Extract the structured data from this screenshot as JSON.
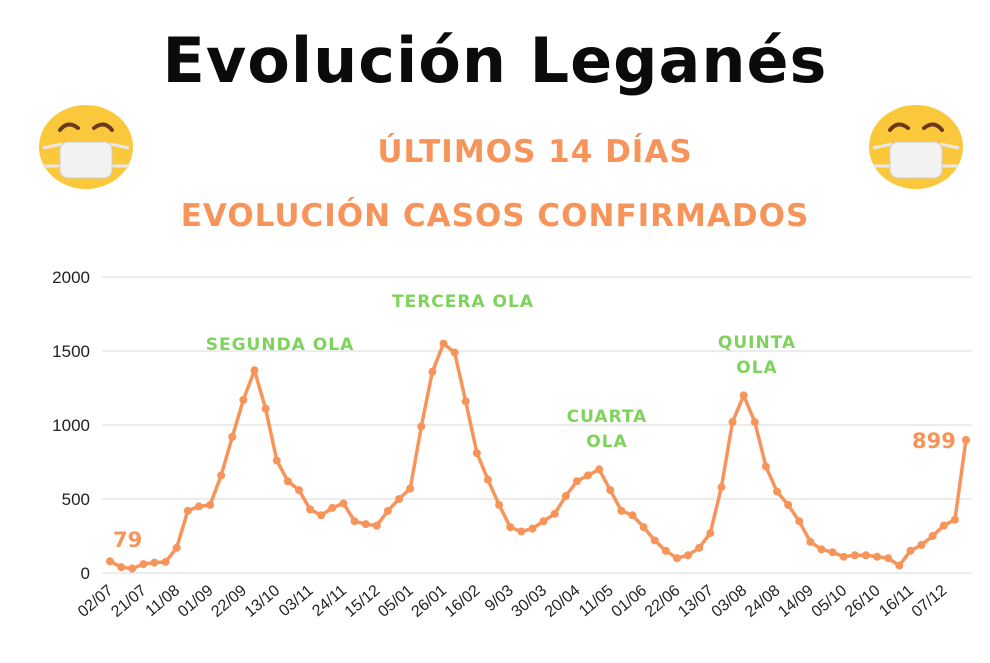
{
  "header": {
    "title": "Evolución Leganés",
    "subtitle1": "ÚLTIMOS 14 DÍAS",
    "subtitle2": "EVOLUCIÓN CASOS CONFIRMADOS"
  },
  "icons": {
    "left": "face-with-medical-mask-icon",
    "right": "face-with-medical-mask-icon"
  },
  "colors": {
    "line": "#f7945a",
    "annotation": "#7ed35a",
    "grid": "#d9d9d9"
  },
  "chart_data": {
    "type": "line",
    "ylim": [
      0,
      2000
    ],
    "yticks": [
      0,
      500,
      1000,
      1500,
      2000
    ],
    "xtick_labels": [
      "02/07",
      "21/07",
      "11/08",
      "01/09",
      "22/09",
      "13/10",
      "03/11",
      "24/11",
      "15/12",
      "05/01",
      "26/01",
      "16/02",
      "9/03",
      "30/03",
      "20/04",
      "11/05",
      "01/06",
      "22/06",
      "13/07",
      "03/08",
      "24/08",
      "14/09",
      "05/10",
      "26/10",
      "16/11",
      "07/12"
    ],
    "grid": true,
    "series": [
      {
        "values": [
          79,
          40,
          30,
          60,
          70,
          75,
          170,
          420,
          450,
          460,
          660,
          920,
          1170,
          1370,
          1110,
          760,
          620,
          560,
          430,
          390,
          440,
          470,
          350,
          330,
          320,
          420,
          500,
          570,
          990,
          1360,
          1550,
          1490,
          1160,
          810,
          630,
          460,
          310,
          280,
          300,
          350,
          400,
          520,
          620,
          660,
          700,
          560,
          420,
          390,
          310,
          220,
          150,
          100,
          120,
          170,
          270,
          580,
          1020,
          1200,
          1020,
          720,
          550,
          460,
          350,
          210,
          160,
          140,
          110,
          120,
          120,
          110,
          100,
          50,
          150,
          190,
          250,
          320,
          360,
          899
        ]
      }
    ],
    "annotations": [
      {
        "text": "SEGUNDA OLA",
        "lines": [
          "SEGUNDA OLA"
        ]
      },
      {
        "text": "TERCERA OLA",
        "lines": [
          "TERCERA OLA"
        ]
      },
      {
        "text": "CUARTA OLA",
        "lines": [
          "CUARTA",
          "OLA"
        ]
      },
      {
        "text": "QUINTA OLA",
        "lines": [
          "QUINTA",
          "OLA"
        ]
      }
    ],
    "start_label": "79",
    "end_label": "899"
  }
}
